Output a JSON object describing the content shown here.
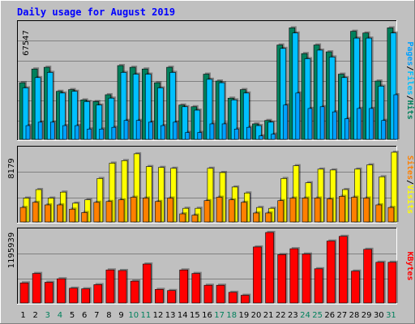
{
  "title": "Daily usage for August 2019",
  "colors": {
    "background": "#c0c0c0",
    "frame_light": "#ffffff",
    "frame_dark": "#808080",
    "title": "#0000ff",
    "hits": "#00805c",
    "files": "#00c0ff",
    "pages": "#00a0ff",
    "visits": "#ffff00",
    "sites": "#ff8000",
    "kbytes": "#ff0000",
    "weekend_day": "#00805c",
    "weekday": "#000000",
    "legend_sep": "#000000"
  },
  "chart_data": [
    {
      "type": "bar",
      "name": "hits-files-pages",
      "max_label": "67547",
      "ymax": 67547,
      "legend": [
        {
          "text": "Pages",
          "color": "#00a0ff"
        },
        {
          "text": "/",
          "color": "#000000"
        },
        {
          "text": "Files",
          "color": "#00c0ff"
        },
        {
          "text": "/",
          "color": "#000000"
        },
        {
          "text": "Hits",
          "color": "#00805c"
        }
      ],
      "series": [
        {
          "name": "Hits",
          "values": [
            33000,
            41000,
            42000,
            28000,
            29000,
            23000,
            22000,
            26000,
            43000,
            42000,
            41000,
            33000,
            42000,
            20000,
            19000,
            38000,
            34000,
            24000,
            29000,
            9000,
            11000,
            55000,
            65000,
            50000,
            55000,
            51000,
            38000,
            63000,
            62000,
            34000,
            65000
          ]
        },
        {
          "name": "Files",
          "values": [
            30000,
            36000,
            39000,
            27000,
            28000,
            22000,
            20000,
            24000,
            39000,
            38000,
            38000,
            30000,
            39000,
            19000,
            17000,
            35000,
            33000,
            23000,
            27000,
            8000,
            10000,
            53000,
            62000,
            47000,
            52000,
            48000,
            36000,
            59000,
            59000,
            31000,
            62000
          ]
        },
        {
          "name": "Pages",
          "values": [
            8000,
            10000,
            10000,
            8000,
            8000,
            6000,
            6000,
            7000,
            11000,
            11000,
            10000,
            8000,
            10000,
            4000,
            4000,
            9000,
            9000,
            6000,
            7000,
            2000,
            3000,
            20000,
            27000,
            18000,
            19000,
            16000,
            12000,
            18000,
            18000,
            11000,
            26000
          ]
        }
      ]
    },
    {
      "type": "bar",
      "name": "visits-sites",
      "max_label": "8179",
      "ymax": 8179,
      "legend": [
        {
          "text": "Sites",
          "color": "#ff8000"
        },
        {
          "text": "/",
          "color": "#000000"
        },
        {
          "text": "Visits",
          "color": "#ffff00"
        }
      ],
      "series": [
        {
          "name": "Visits",
          "values": [
            2800,
            3800,
            2800,
            3500,
            2200,
            2600,
            5100,
            6900,
            7200,
            8000,
            6500,
            6400,
            6300,
            1600,
            1600,
            6300,
            5800,
            4100,
            3400,
            1700,
            1600,
            5100,
            6600,
            4600,
            6200,
            6100,
            3800,
            6200,
            6700,
            5300,
            8179
          ]
        },
        {
          "name": "Sites",
          "values": [
            1700,
            2300,
            2000,
            2000,
            1500,
            1100,
            2300,
            2400,
            2600,
            2900,
            2800,
            2400,
            2800,
            950,
            800,
            2500,
            2900,
            2600,
            2300,
            1050,
            1050,
            2500,
            2800,
            2800,
            2800,
            2700,
            3000,
            2900,
            2800,
            2000,
            1700
          ]
        }
      ]
    },
    {
      "type": "bar",
      "name": "kbytes",
      "max_label": "1195939",
      "ymax": 1195939,
      "legend": [
        {
          "text": "KBytes",
          "color": "#ff0000"
        }
      ],
      "series": [
        {
          "name": "KBytes",
          "values": [
            340000,
            500000,
            350000,
            410000,
            250000,
            240000,
            310000,
            560000,
            550000,
            370000,
            660000,
            230000,
            210000,
            560000,
            500000,
            300000,
            300000,
            180000,
            130000,
            950000,
            1195939,
            820000,
            920000,
            830000,
            580000,
            1050000,
            1130000,
            540000,
            910000,
            690000,
            690000
          ]
        }
      ]
    }
  ],
  "days": [
    "1",
    "2",
    "3",
    "4",
    "5",
    "6",
    "7",
    "8",
    "9",
    "10",
    "11",
    "12",
    "13",
    "14",
    "15",
    "16",
    "17",
    "18",
    "19",
    "20",
    "21",
    "22",
    "23",
    "24",
    "25",
    "26",
    "27",
    "28",
    "29",
    "30",
    "31"
  ],
  "weekend_days": [
    "3",
    "4",
    "10",
    "11",
    "17",
    "18",
    "24",
    "25",
    "31"
  ]
}
